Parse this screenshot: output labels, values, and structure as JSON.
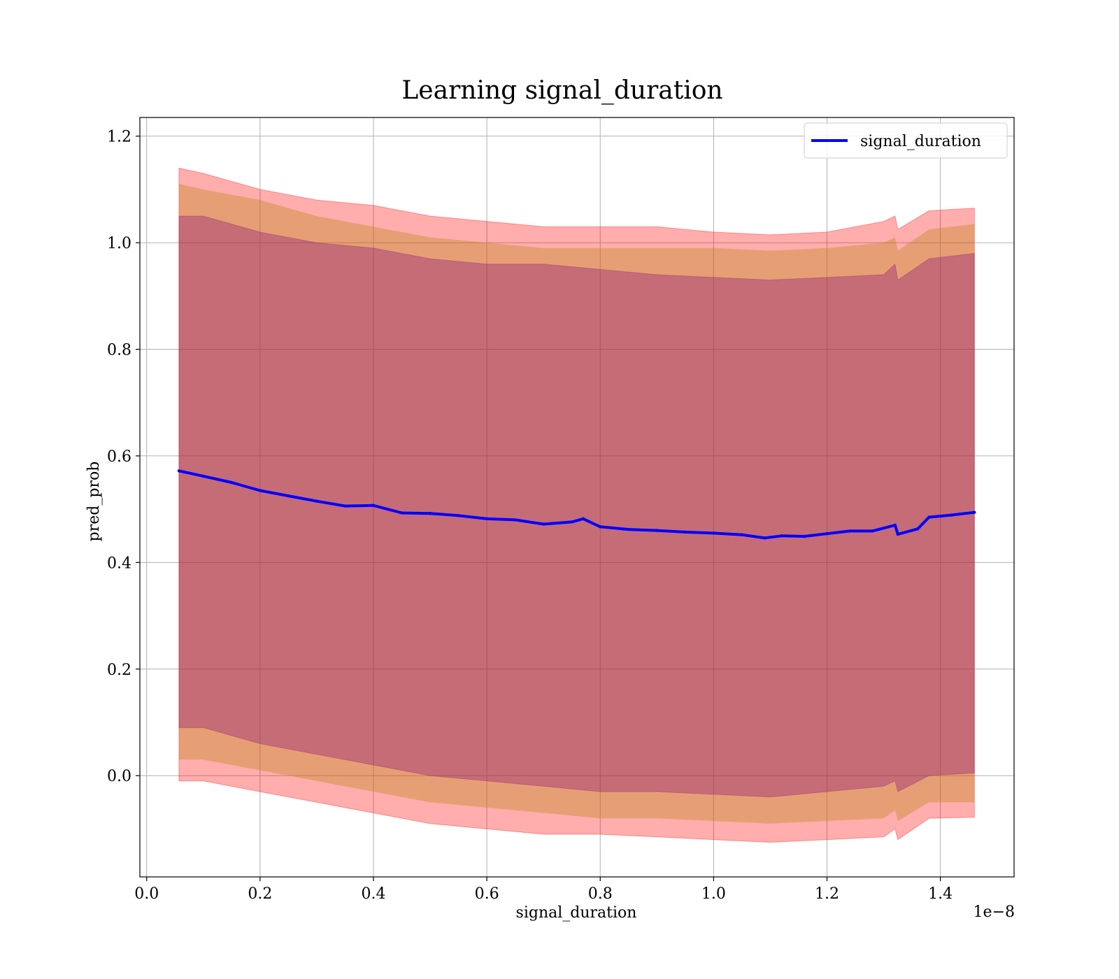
{
  "chart_data": {
    "type": "line",
    "title": "Learning signal_duration",
    "xlabel": "signal_duration",
    "ylabel": "pred_prob",
    "x_offset_label": "1e−8",
    "xlim": [
      -0.012,
      1.53
    ],
    "ylim": [
      -0.19,
      1.235
    ],
    "x_ticks": [
      0.0,
      0.2,
      0.4,
      0.6,
      0.8,
      1.0,
      1.2,
      1.4
    ],
    "x_tick_labels": [
      "0.0",
      "0.2",
      "0.4",
      "0.6",
      "0.8",
      "1.0",
      "1.2",
      "1.4"
    ],
    "y_ticks": [
      0.0,
      0.2,
      0.4,
      0.6,
      0.8,
      1.0,
      1.2
    ],
    "y_tick_labels": [
      "0.0",
      "0.2",
      "0.4",
      "0.6",
      "0.8",
      "1.0",
      "1.2"
    ],
    "grid": true,
    "legend_position": "top-right",
    "series": [
      {
        "name": "signal_duration",
        "color": "#0000ff",
        "x": [
          0.057,
          0.1,
          0.15,
          0.2,
          0.25,
          0.3,
          0.35,
          0.4,
          0.45,
          0.5,
          0.55,
          0.6,
          0.65,
          0.7,
          0.75,
          0.77,
          0.8,
          0.85,
          0.9,
          0.95,
          1.0,
          1.05,
          1.09,
          1.12,
          1.16,
          1.2,
          1.24,
          1.28,
          1.32,
          1.325,
          1.36,
          1.38,
          1.42,
          1.46
        ],
        "y": [
          0.572,
          0.562,
          0.55,
          0.535,
          0.525,
          0.515,
          0.506,
          0.507,
          0.493,
          0.492,
          0.488,
          0.482,
          0.48,
          0.472,
          0.476,
          0.482,
          0.467,
          0.462,
          0.46,
          0.457,
          0.455,
          0.452,
          0.446,
          0.45,
          0.449,
          0.454,
          0.459,
          0.459,
          0.47,
          0.453,
          0.463,
          0.485,
          0.489,
          0.494
        ]
      }
    ],
    "bands": {
      "color_outer": "#ff0000",
      "color_middle": "#b8860b",
      "color_inner": "#800080",
      "x": [
        0.057,
        0.1,
        0.2,
        0.3,
        0.4,
        0.5,
        0.6,
        0.7,
        0.8,
        0.9,
        1.0,
        1.1,
        1.2,
        1.3,
        1.32,
        1.325,
        1.38,
        1.46
      ],
      "outer_upper": [
        1.14,
        1.13,
        1.1,
        1.08,
        1.07,
        1.05,
        1.04,
        1.03,
        1.03,
        1.03,
        1.02,
        1.015,
        1.02,
        1.04,
        1.05,
        1.025,
        1.06,
        1.065
      ],
      "middle_upper": [
        1.11,
        1.1,
        1.08,
        1.05,
        1.03,
        1.01,
        1.0,
        0.99,
        0.99,
        0.99,
        0.99,
        0.985,
        0.99,
        1.0,
        1.01,
        0.985,
        1.025,
        1.035
      ],
      "inner_upper": [
        1.05,
        1.05,
        1.02,
        1.0,
        0.99,
        0.97,
        0.96,
        0.96,
        0.95,
        0.94,
        0.935,
        0.93,
        0.935,
        0.94,
        0.96,
        0.93,
        0.97,
        0.98
      ],
      "inner_lower": [
        0.09,
        0.09,
        0.06,
        0.04,
        0.02,
        0.0,
        -0.01,
        -0.02,
        -0.03,
        -0.03,
        -0.035,
        -0.04,
        -0.03,
        -0.02,
        -0.01,
        -0.03,
        0.0,
        0.005
      ],
      "middle_lower": [
        0.03,
        0.03,
        0.01,
        -0.01,
        -0.03,
        -0.05,
        -0.06,
        -0.07,
        -0.08,
        -0.08,
        -0.085,
        -0.09,
        -0.085,
        -0.08,
        -0.065,
        -0.085,
        -0.05,
        -0.05
      ],
      "outer_lower": [
        -0.01,
        -0.01,
        -0.03,
        -0.05,
        -0.07,
        -0.09,
        -0.1,
        -0.11,
        -0.11,
        -0.115,
        -0.12,
        -0.125,
        -0.12,
        -0.115,
        -0.1,
        -0.12,
        -0.08,
        -0.078
      ]
    }
  }
}
